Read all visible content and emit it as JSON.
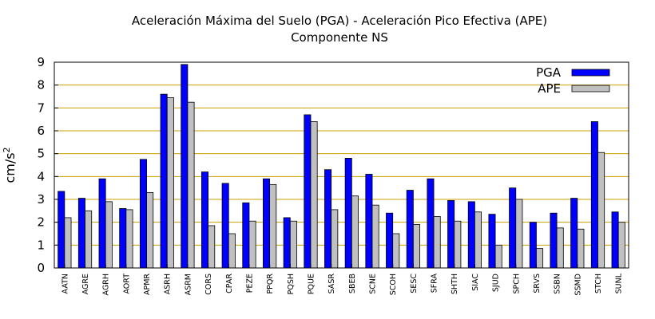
{
  "chart_data": {
    "type": "bar",
    "title": "Aceleración Máxima del Suelo (PGA) -  Aceleración Pico Efectiva (APE)",
    "subtitle": "Componente NS",
    "ylabel": "cm/s",
    "ylabel_superscript": "2",
    "ylim": [
      0,
      9
    ],
    "yticks": [
      0,
      1,
      2,
      3,
      4,
      5,
      6,
      7,
      8,
      9
    ],
    "grid": true,
    "legend_position": "top-right",
    "categories": [
      "AATN",
      "AGRE",
      "AGRH",
      "AORT",
      "APMR",
      "ASRH",
      "ASRM",
      "CORS",
      "CPAR",
      "PEZE",
      "PPQR",
      "PQSH",
      "PQUE",
      "SASR",
      "SBEB",
      "SCNE",
      "SCOH",
      "SESC",
      "SFRA",
      "SHTH",
      "SIAC",
      "SJUD",
      "SPCH",
      "SRVS",
      "SSBN",
      "SSMD",
      "STCH",
      "SUNL"
    ],
    "series": [
      {
        "name": "PGA",
        "color": "#0000ff",
        "values": [
          3.35,
          3.05,
          3.9,
          2.6,
          4.75,
          7.6,
          8.9,
          4.2,
          3.7,
          2.85,
          3.9,
          2.2,
          6.7,
          4.3,
          4.8,
          4.1,
          2.4,
          3.4,
          3.9,
          2.95,
          2.9,
          2.35,
          3.5,
          2.0,
          2.4,
          3.05,
          6.4,
          2.45
        ]
      },
      {
        "name": "APE",
        "color": "#c0c0c0",
        "values": [
          2.2,
          2.5,
          2.9,
          2.55,
          3.3,
          7.45,
          7.25,
          1.85,
          1.5,
          2.05,
          3.65,
          2.05,
          6.4,
          2.55,
          3.15,
          2.75,
          1.5,
          1.9,
          2.25,
          2.05,
          2.45,
          1.0,
          3.0,
          0.85,
          1.75,
          1.7,
          5.05,
          2.0
        ]
      }
    ],
    "colors": {
      "grid": "#c8a000",
      "axis": "#000000",
      "bar_outline": "#000000"
    }
  }
}
